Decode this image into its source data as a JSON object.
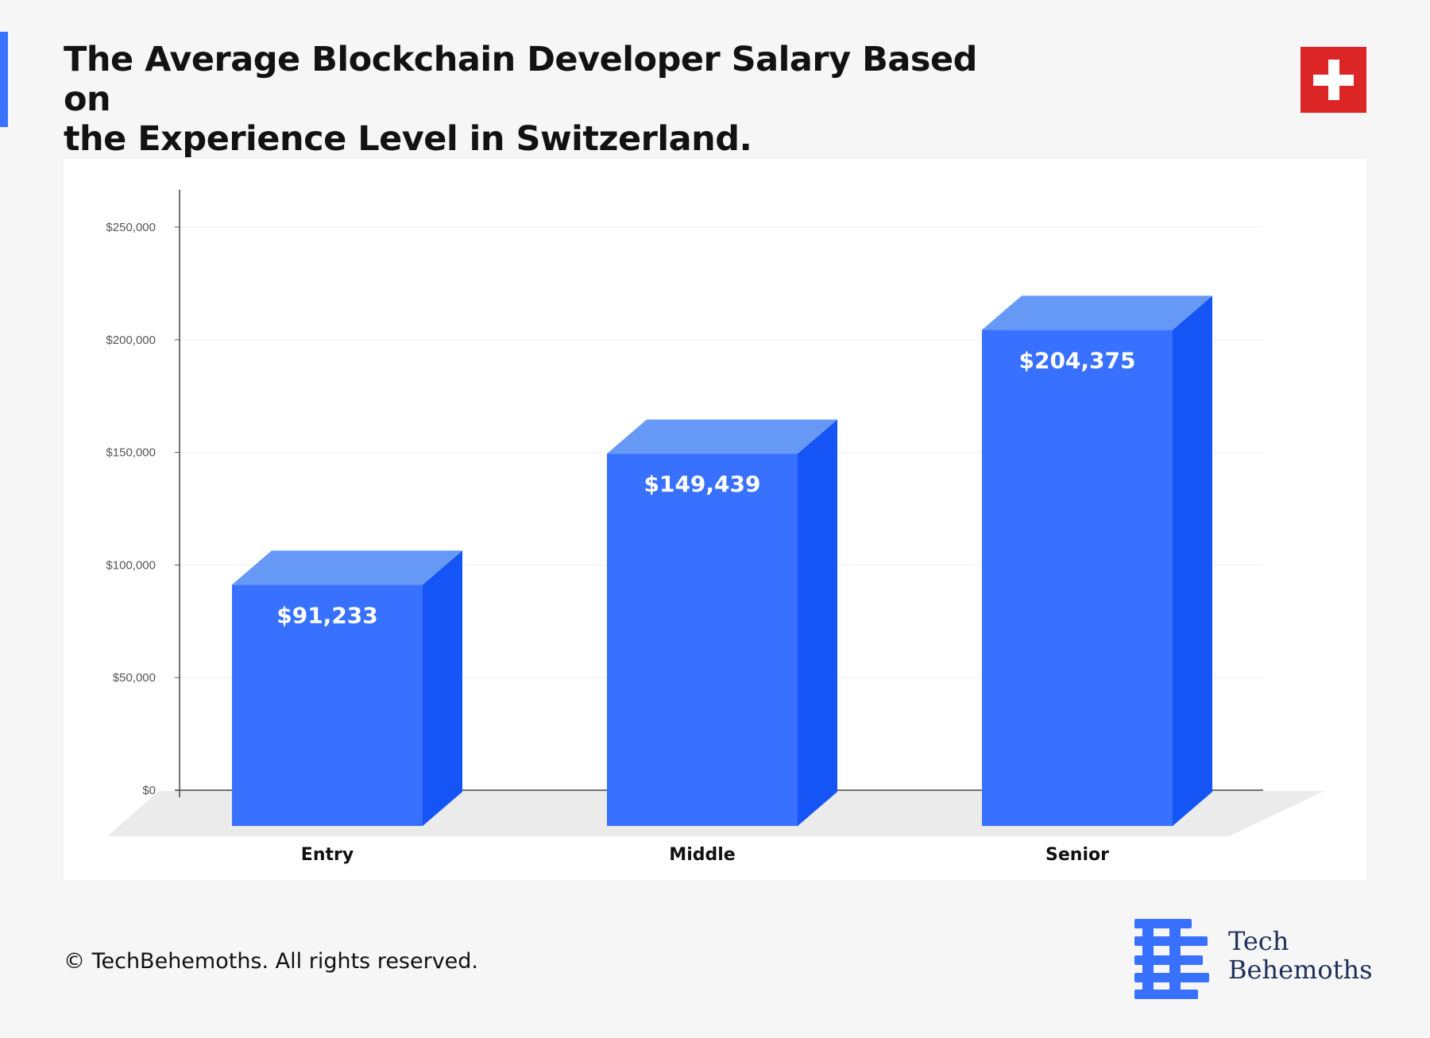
{
  "header": {
    "title_line1": "The Average Blockchain Developer Salary Based on",
    "title_line2": "the Experience Level in Switzerland."
  },
  "footer": {
    "copyright": "© TechBehemoths. All rights reserved.",
    "brand_line1": "Tech",
    "brand_line2": "Behemoths"
  },
  "colors": {
    "accent": "#3a73ff",
    "bar_front": "#3870ff",
    "bar_top": "#6699f5",
    "bar_side": "#1554f5",
    "flag_red": "#dc2626"
  },
  "icons": [
    "swiss-flag-icon",
    "techbehemoths-logo-icon"
  ],
  "chart_data": {
    "type": "bar",
    "categories": [
      "Entry",
      "Middle",
      "Senior"
    ],
    "values": [
      91233,
      149439,
      204375
    ],
    "value_labels": [
      "$91,233",
      "$149,439",
      "$204,375"
    ],
    "y_ticks": [
      0,
      50000,
      100000,
      150000,
      200000,
      250000
    ],
    "y_tick_labels": [
      "$0",
      "$50,000",
      "$100,000",
      "$150,000",
      "$200,000",
      "$250,000"
    ],
    "ylim": [
      0,
      250000
    ],
    "grid": true,
    "style": "3d-columns",
    "title": "",
    "xlabel": "",
    "ylabel": ""
  }
}
